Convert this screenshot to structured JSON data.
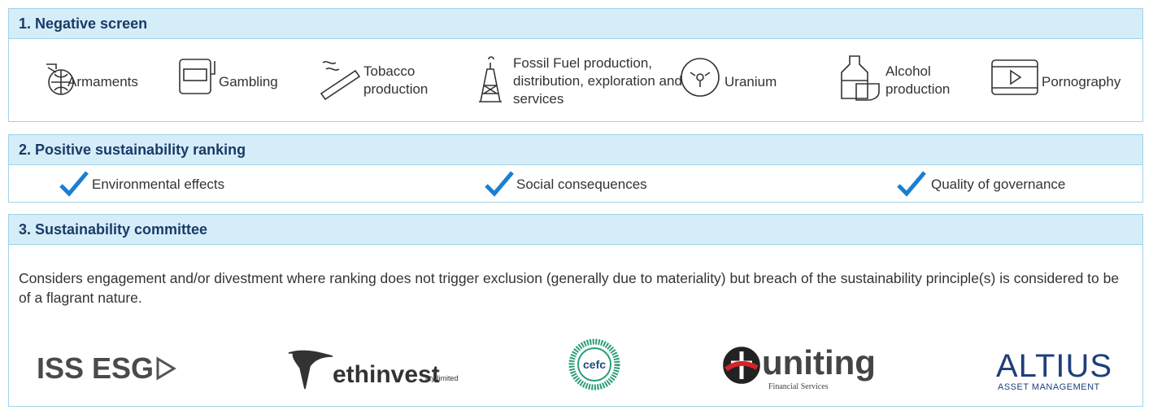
{
  "sections": [
    {
      "title": "1. Negative screen",
      "items": [
        "Armaments",
        "Gambling",
        "Tobacco production",
        "Fossil Fuel production, distribution, exploration and services",
        "Uranium",
        "Alcohol production",
        "Pornography"
      ]
    },
    {
      "title": "2. Positive sustainability ranking",
      "items": [
        "Environmental effects",
        "Social consequences",
        "Quality of governance"
      ]
    },
    {
      "title": "3. Sustainability committee",
      "text": "Considers engagement and/or divestment where ranking does not trigger exclusion (generally due to materiality) but breach of the sustainability principle(s) is considered to be of a flagrant nature."
    }
  ],
  "logos": [
    {
      "name": "ISS ESG"
    },
    {
      "name": "ethinvest",
      "sub": "pty limited"
    },
    {
      "name": "cefc"
    },
    {
      "name": "uniting",
      "sub": "Financial Services"
    },
    {
      "name": "ALTIUS",
      "sub": "ASSET MANAGEMENT"
    }
  ]
}
